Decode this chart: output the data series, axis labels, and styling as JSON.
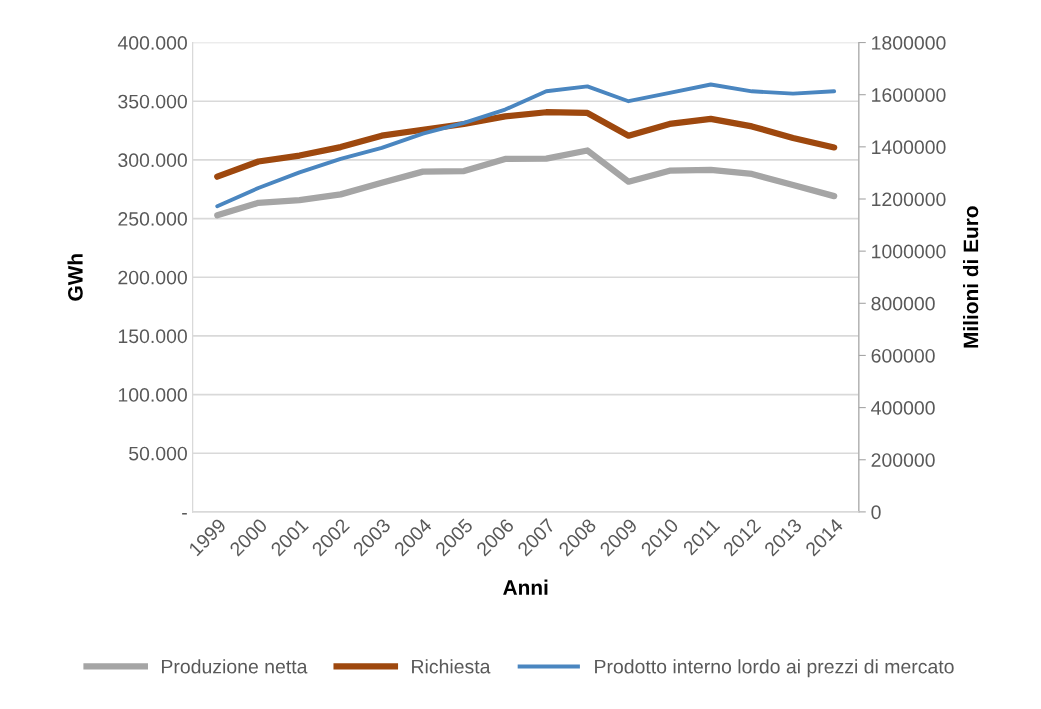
{
  "chart_data": {
    "type": "line",
    "xlabel": "Anni",
    "ylabel": "GWh",
    "y2label": "Milioni di Euro",
    "categories": [
      "1999",
      "2000",
      "2001",
      "2002",
      "2003",
      "2004",
      "2005",
      "2006",
      "2007",
      "2008",
      "2009",
      "2010",
      "2011",
      "2012",
      "2013",
      "2014"
    ],
    "series": [
      {
        "name": "Produzione netta",
        "color": "#a5a5a5",
        "values": [
          252800,
          263400,
          265700,
          270600,
          280500,
          290000,
          290500,
          300800,
          301100,
          308000,
          281400,
          290800,
          291400,
          288000,
          278600,
          269100
        ]
      },
      {
        "name": "Richiesta",
        "color": "#9e480e",
        "values": [
          285700,
          298600,
          303700,
          310900,
          320600,
          325700,
          330600,
          337100,
          340600,
          340000,
          320600,
          330600,
          334900,
          328500,
          318600,
          310600
        ]
      },
      {
        "name": "Prodotto interno lordo ai prezzi di mercato",
        "color": "#4a86c0",
        "axis": "y2",
        "values": [
          1172000,
          1242000,
          1302000,
          1354000,
          1396000,
          1451000,
          1492000,
          1543000,
          1613000,
          1632000,
          1575000,
          1607000,
          1639000,
          1613000,
          1604000,
          1613000
        ]
      }
    ],
    "ylim": [
      0,
      400000
    ],
    "yticks": [
      {
        "value": 0,
        "label": "-"
      },
      {
        "value": 50000,
        "label": "50.000"
      },
      {
        "value": 100000,
        "label": "100.000"
      },
      {
        "value": 150000,
        "label": "150.000"
      },
      {
        "value": 200000,
        "label": "200.000"
      },
      {
        "value": 250000,
        "label": "250.000"
      },
      {
        "value": 300000,
        "label": "300.000"
      },
      {
        "value": 350000,
        "label": "350.000"
      },
      {
        "value": 400000,
        "label": "400.000"
      }
    ],
    "y2lim": [
      0,
      1800000
    ],
    "y2ticks": [
      0,
      200000,
      400000,
      600000,
      800000,
      1000000,
      1200000,
      1400000,
      1600000,
      1800000
    ],
    "grid": "y",
    "legend": "bottom",
    "marker": "none",
    "line_style": "solid"
  }
}
